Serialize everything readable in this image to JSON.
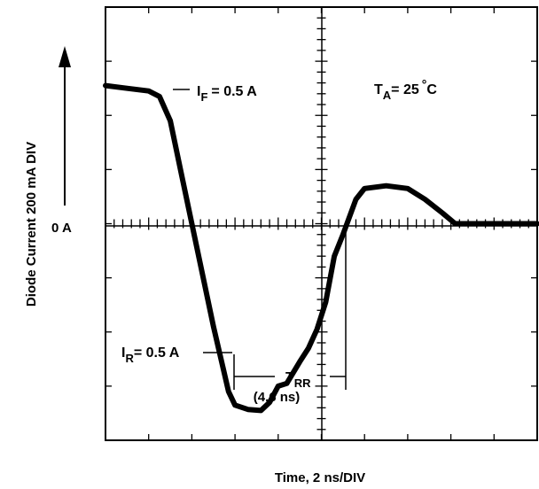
{
  "chart_data": {
    "type": "line",
    "title": "",
    "xlabel": "Time, 2 ns/DIV",
    "ylabel": "Diode Current 200 mA DIV",
    "x_divisions": 10,
    "y_divisions": 8,
    "xlim_div": [
      0,
      10
    ],
    "ylim_div": [
      -4,
      4
    ],
    "zero_label": "0 A",
    "grid": false,
    "series": [
      {
        "name": "",
        "points_div": [
          [
            0.0,
            2.55
          ],
          [
            0.5,
            2.5
          ],
          [
            1.0,
            2.45
          ],
          [
            1.25,
            2.35
          ],
          [
            1.5,
            1.9
          ],
          [
            1.75,
            0.95
          ],
          [
            2.0,
            0.0
          ],
          [
            2.5,
            -1.9
          ],
          [
            2.85,
            -3.1
          ],
          [
            3.0,
            -3.35
          ],
          [
            3.3,
            -3.43
          ],
          [
            3.6,
            -3.45
          ],
          [
            3.8,
            -3.3
          ],
          [
            4.0,
            -3.0
          ],
          [
            4.2,
            -2.95
          ],
          [
            4.5,
            -2.55
          ],
          [
            4.7,
            -2.3
          ],
          [
            4.9,
            -1.95
          ],
          [
            5.1,
            -1.45
          ],
          [
            5.3,
            -0.6
          ],
          [
            5.5,
            -0.2
          ],
          [
            5.8,
            0.45
          ],
          [
            6.0,
            0.65
          ],
          [
            6.5,
            0.7
          ],
          [
            7.0,
            0.65
          ],
          [
            7.4,
            0.45
          ],
          [
            7.8,
            0.2
          ],
          [
            8.1,
            0.0
          ],
          [
            10.0,
            0.0
          ]
        ]
      }
    ],
    "annotations": {
      "if_main": "I",
      "if_sub": "F",
      "if_value": "= 0.5 A",
      "ir_main": "I",
      "ir_sub": "R",
      "ir_value": "= 0.5 A",
      "trr_main": "T",
      "trr_sub": "RR",
      "trr_value": "(4.6 ns)",
      "ta_main": "T",
      "ta_sub": "A",
      "ta_value": "= 25",
      "ta_degree": "°",
      "ta_unit": "C"
    }
  }
}
